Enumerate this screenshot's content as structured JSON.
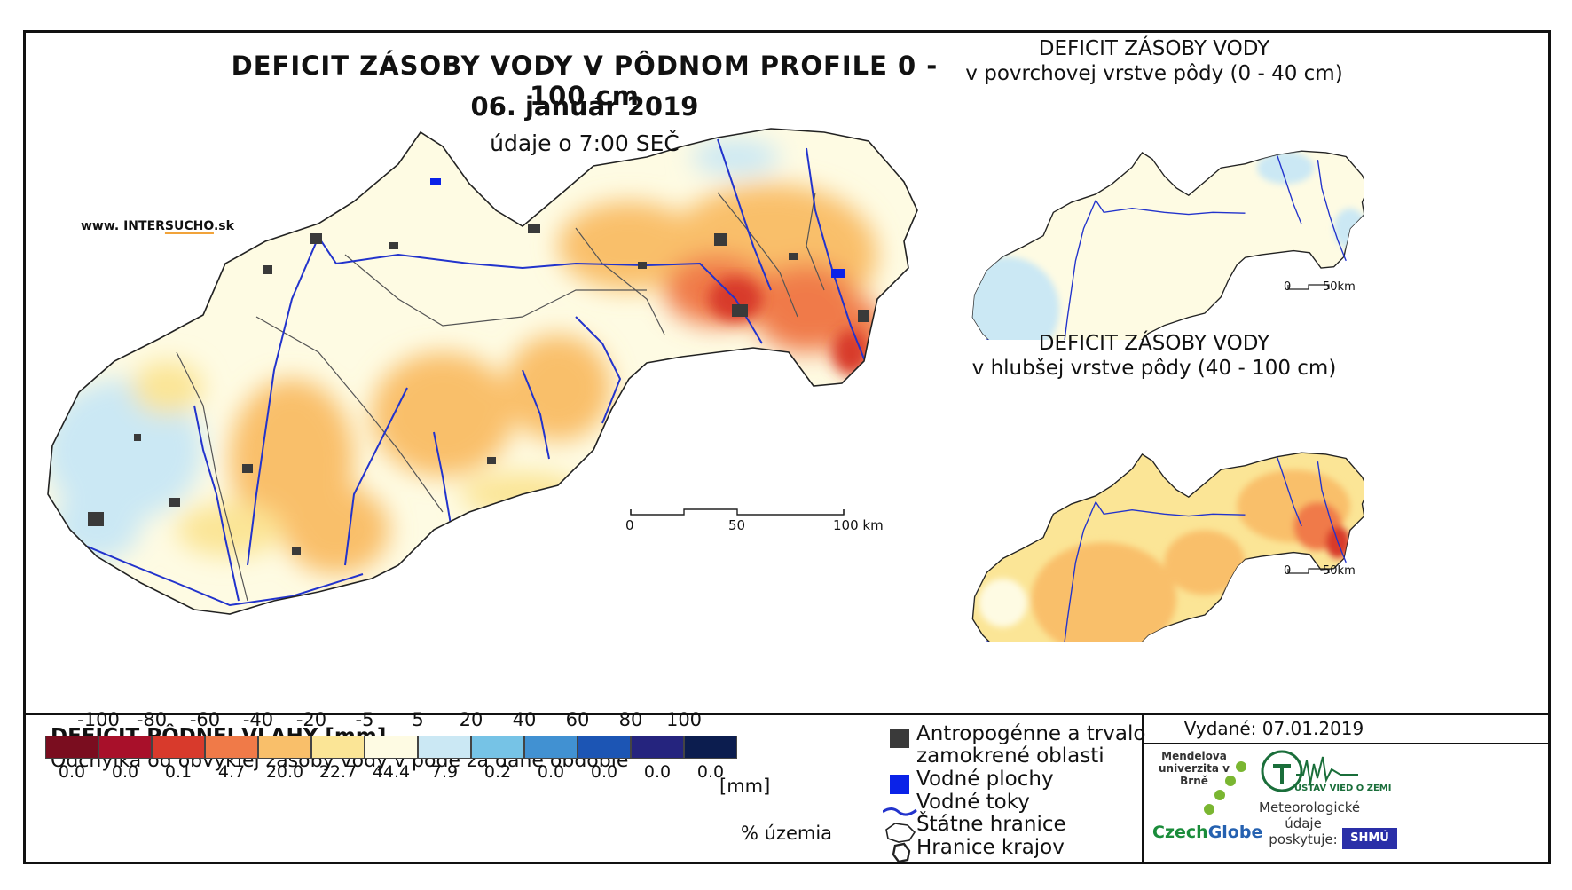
{
  "header": {
    "title": "DEFICIT ZÁSOBY VODY V PÔDNOM PROFILE 0 - 100 cm",
    "date": "06. január 2019",
    "time": "údaje o 7:00 SEČ"
  },
  "website": {
    "prefix": "www. INTER",
    "brand": "SUCHO",
    "suffix": ".sk"
  },
  "insets": [
    {
      "line1": "DEFICIT ZÁSOBY VODY",
      "line2": "v povrchovej vrstve pôdy (0 - 40 cm)",
      "scale_start": "0",
      "scale_end": "50km"
    },
    {
      "line1": "DEFICIT ZÁSOBY VODY",
      "line2": "v hlubšej vrstve pôdy (40 - 100 cm)",
      "scale_start": "0",
      "scale_end": "50km"
    }
  ],
  "main_scale": {
    "start": "0",
    "mid": "50",
    "end": "100 km"
  },
  "legend": {
    "title": "DEFICIT PÔDNEJ VLAHY [mm]",
    "subtitle": "Odchýlka od obvyklej zásoby vody v pôde za dané obdobie",
    "unit": "[mm]",
    "percent_label": "% územia",
    "boundaries": [
      "-100",
      "-80",
      "-60",
      "-40",
      "-20",
      "-5",
      "5",
      "20",
      "40",
      "60",
      "80",
      "100"
    ],
    "bins": [
      {
        "color": "#7a0d1f",
        "percent": "0.0"
      },
      {
        "color": "#a8102a",
        "percent": "0.0"
      },
      {
        "color": "#d83a2c",
        "percent": "0.1"
      },
      {
        "color": "#f07a48",
        "percent": "4.7"
      },
      {
        "color": "#f9bf6a",
        "percent": "20.0"
      },
      {
        "color": "#fbe596",
        "percent": "22.7"
      },
      {
        "color": "#fefbe3",
        "percent": "44.4"
      },
      {
        "color": "#cbe8f4",
        "percent": "7.9"
      },
      {
        "color": "#76c3e6",
        "percent": "0.2"
      },
      {
        "color": "#4191d2",
        "percent": "0.0"
      },
      {
        "color": "#1c55b4",
        "percent": "0.0"
      },
      {
        "color": "#25247e",
        "percent": "0.0"
      },
      {
        "color": "#0c1d4f",
        "percent": "0.0"
      }
    ]
  },
  "map_legend": {
    "urban_line1": "Antropogénne a trvalo",
    "urban_line2": "zamokrené oblasti",
    "water_bodies": "Vodné plochy",
    "rivers": "Vodné toky",
    "state_border": "Štátne hranice",
    "region_border": "Hranice krajov"
  },
  "issued": "Vydané: 07.01.2019",
  "logos": {
    "mendel": "Mendelova univerzita v Brně",
    "czechglobe_1": "Czech",
    "czechglobe_2": "Globe",
    "ustav": "ÚSTAV VIED O ZEMI",
    "meteo": "Meteorologické údaje poskytuje:",
    "shmu": "SHMÚ"
  },
  "colors": {
    "urban": "#3a3a3a",
    "water": "#0a22e8",
    "river": "#2233cc",
    "border": "#222222"
  }
}
